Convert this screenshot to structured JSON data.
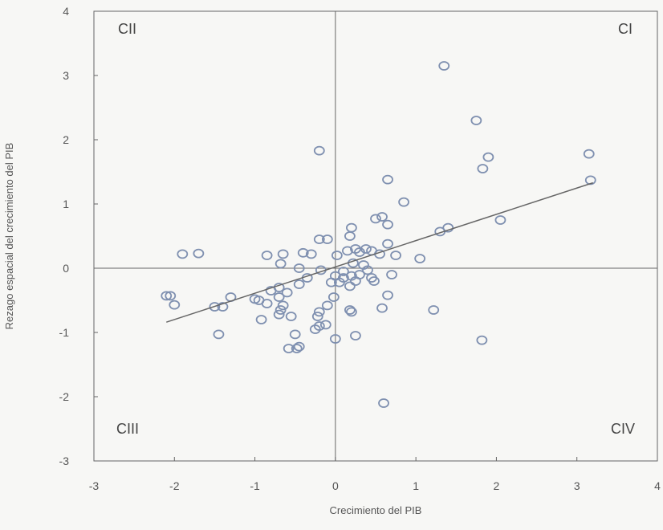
{
  "chart_data": {
    "type": "scatter",
    "title": "",
    "xlabel": "Crecimiento del PIB",
    "ylabel": "Rezago espacial del crecimiento del PIB",
    "xlim": [
      -3,
      4
    ],
    "ylim": [
      -3,
      4
    ],
    "xticks": [
      "-3",
      "-2",
      "-1",
      "0",
      "1",
      "2",
      "3",
      "4"
    ],
    "yticks": [
      "-3",
      "-2",
      "-1",
      "0",
      "1",
      "2",
      "3",
      "4"
    ],
    "grid": false,
    "quadrants": {
      "top_left": "CII",
      "top_right": "CI",
      "bottom_left": "CIII",
      "bottom_right": "CIV"
    },
    "colors": {
      "points": "#7f90b0",
      "line": "#666666",
      "axes": "#666666",
      "frame": "#666666"
    },
    "trendline": {
      "x": [
        -2.1,
        3.2
      ],
      "y": [
        -0.84,
        1.33
      ]
    },
    "points": [
      [
        1.35,
        3.15
      ],
      [
        1.75,
        2.3
      ],
      [
        -0.2,
        1.83
      ],
      [
        3.15,
        1.78
      ],
      [
        1.9,
        1.73
      ],
      [
        1.83,
        1.55
      ],
      [
        3.17,
        1.37
      ],
      [
        0.65,
        1.38
      ],
      [
        0.85,
        1.03
      ],
      [
        2.05,
        0.75
      ],
      [
        0.5,
        0.77
      ],
      [
        0.58,
        0.8
      ],
      [
        0.65,
        0.68
      ],
      [
        0.2,
        0.63
      ],
      [
        1.4,
        0.63
      ],
      [
        1.3,
        0.57
      ],
      [
        0.18,
        0.5
      ],
      [
        -1.9,
        0.22
      ],
      [
        -1.7,
        0.23
      ],
      [
        -0.85,
        0.2
      ],
      [
        -0.65,
        0.22
      ],
      [
        -0.3,
        0.22
      ],
      [
        -0.2,
        0.45
      ],
      [
        -0.1,
        0.45
      ],
      [
        0.02,
        0.2
      ],
      [
        0.15,
        0.27
      ],
      [
        0.25,
        0.3
      ],
      [
        0.3,
        0.25
      ],
      [
        0.38,
        0.3
      ],
      [
        0.45,
        0.27
      ],
      [
        0.55,
        0.22
      ],
      [
        0.65,
        0.38
      ],
      [
        0.75,
        0.2
      ],
      [
        1.05,
        0.15
      ],
      [
        -0.4,
        0.24
      ],
      [
        -0.68,
        0.07
      ],
      [
        -0.45,
        0.0
      ],
      [
        -0.18,
        -0.03
      ],
      [
        0.22,
        0.08
      ],
      [
        0.35,
        0.05
      ],
      [
        0.1,
        -0.05
      ],
      [
        0.4,
        -0.03
      ],
      [
        0.0,
        -0.12
      ],
      [
        0.1,
        -0.15
      ],
      [
        0.2,
        -0.12
      ],
      [
        0.3,
        -0.1
      ],
      [
        0.45,
        -0.15
      ],
      [
        0.48,
        -0.2
      ],
      [
        0.7,
        -0.1
      ],
      [
        0.05,
        -0.22
      ],
      [
        0.18,
        -0.28
      ],
      [
        0.25,
        -0.2
      ],
      [
        -0.05,
        -0.22
      ],
      [
        -0.35,
        -0.15
      ],
      [
        -0.45,
        -0.25
      ],
      [
        -0.7,
        -0.3
      ],
      [
        -0.8,
        -0.35
      ],
      [
        -0.6,
        -0.38
      ],
      [
        -2.05,
        -0.43
      ],
      [
        -2.1,
        -0.43
      ],
      [
        -2.0,
        -0.57
      ],
      [
        -1.3,
        -0.45
      ],
      [
        -1.5,
        -0.6
      ],
      [
        -1.4,
        -0.6
      ],
      [
        -1.0,
        -0.48
      ],
      [
        -0.95,
        -0.5
      ],
      [
        -0.85,
        -0.55
      ],
      [
        -0.7,
        -0.45
      ],
      [
        -0.65,
        -0.58
      ],
      [
        -0.68,
        -0.65
      ],
      [
        -0.7,
        -0.72
      ],
      [
        -0.55,
        -0.75
      ],
      [
        -0.2,
        -0.68
      ],
      [
        -0.1,
        -0.58
      ],
      [
        -0.02,
        -0.45
      ],
      [
        0.18,
        -0.65
      ],
      [
        0.2,
        -0.68
      ],
      [
        0.58,
        -0.62
      ],
      [
        0.65,
        -0.42
      ],
      [
        1.22,
        -0.65
      ],
      [
        -0.92,
        -0.8
      ],
      [
        -0.5,
        -1.03
      ],
      [
        -0.25,
        -0.95
      ],
      [
        -0.2,
        -0.9
      ],
      [
        -0.12,
        -0.88
      ],
      [
        -0.22,
        -0.75
      ],
      [
        0.25,
        -1.05
      ],
      [
        0.0,
        -1.1
      ],
      [
        -1.45,
        -1.03
      ],
      [
        -0.58,
        -1.25
      ],
      [
        -0.48,
        -1.25
      ],
      [
        -0.45,
        -1.22
      ],
      [
        1.82,
        -1.12
      ],
      [
        0.6,
        -2.1
      ]
    ]
  }
}
